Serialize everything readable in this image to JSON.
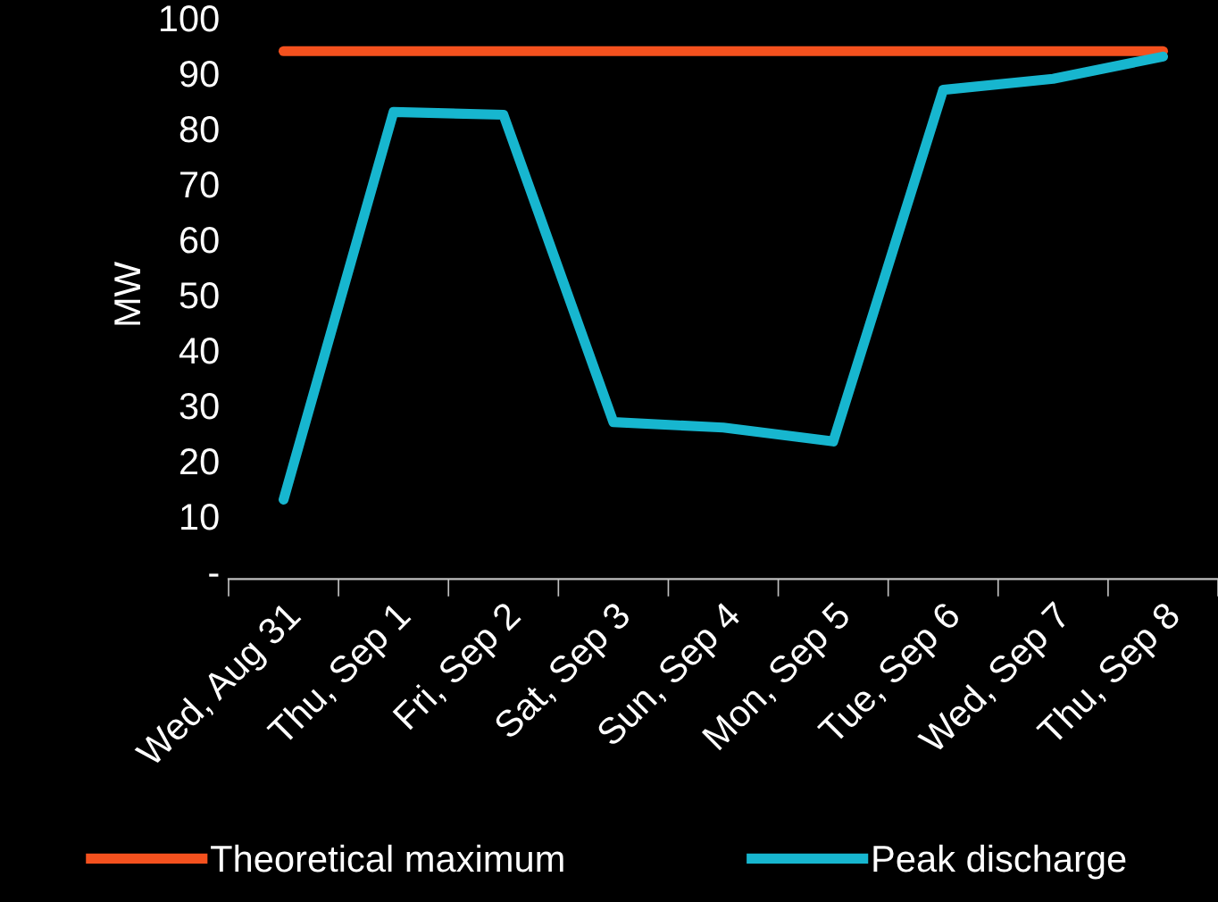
{
  "chart_data": {
    "type": "line",
    "ylabel": "MW",
    "categories": [
      "Wed, Aug 31",
      "Thu, Sep 1",
      "Fri, Sep 2",
      "Sat, Sep 3",
      "Sun, Sep 4",
      "Mon, Sep 5",
      "Tue, Sep 6",
      "Wed, Sep 7",
      "Thu, Sep 8"
    ],
    "series": [
      {
        "name": "Theoretical maximum",
        "color": "#f4511e",
        "values": [
          94,
          94,
          94,
          94,
          94,
          94,
          94,
          94,
          94
        ]
      },
      {
        "name": "Peak discharge",
        "color": "#17b6cf",
        "values": [
          13,
          83,
          82.5,
          27,
          26,
          23.5,
          87,
          89,
          93
        ]
      }
    ],
    "ylim": [
      0,
      100
    ],
    "yticks": [
      {
        "value": 0,
        "label": "-"
      },
      10,
      20,
      30,
      40,
      50,
      60,
      70,
      80,
      90,
      100
    ],
    "grid": false,
    "legend": "bottom",
    "marker": "none",
    "line_style": "solid"
  }
}
